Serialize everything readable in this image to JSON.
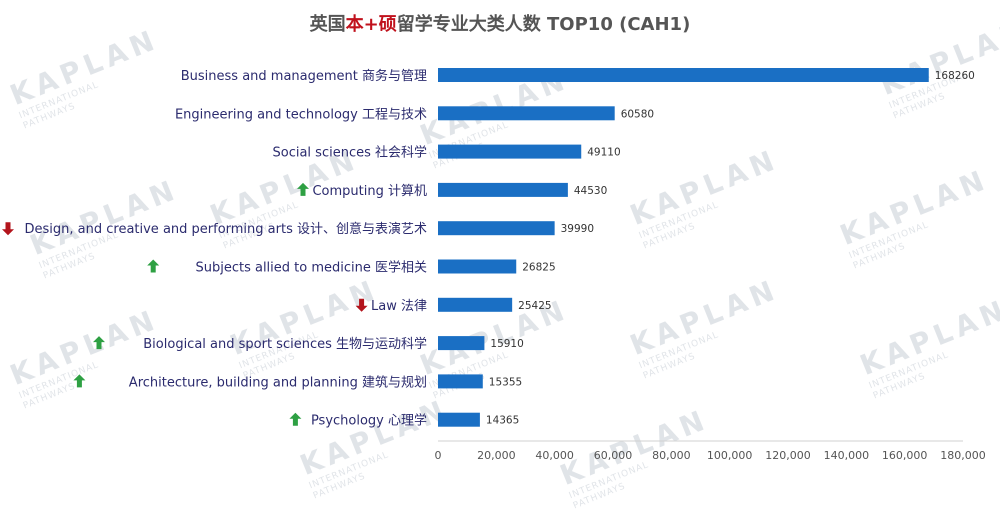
{
  "chart_data": {
    "type": "bar",
    "orientation": "horizontal",
    "title_parts": [
      "英国",
      "本+硕",
      "留学专业大类人数 TOP10 (CAH1)"
    ],
    "categories": [
      "Business and management 商务与管理",
      "Engineering and technology 工程与技术",
      "Social sciences 社会科学",
      "Computing 计算机",
      "Design, and creative and performing arts 设计、创意与表演艺术",
      "Subjects allied to medicine 医学相关",
      "Law 法律",
      "Biological and sport sciences 生物与运动科学",
      "Architecture, building and planning 建筑与规划",
      "Psychology 心理学"
    ],
    "trend": [
      "",
      "",
      "",
      "up",
      "down",
      "up",
      "down",
      "up",
      "up",
      "up"
    ],
    "values": [
      168260,
      60580,
      49110,
      44530,
      39990,
      26825,
      25425,
      15910,
      15355,
      14365
    ],
    "xlim": [
      0,
      180000
    ],
    "xticks": [
      "0",
      "20,000",
      "40,000",
      "60,000",
      "80,000",
      "100,000",
      "120,000",
      "140,000",
      "160,000",
      "180,000"
    ],
    "grid": false,
    "bar_color": "#1a6fc4",
    "trend_colors": {
      "up": "#2ea043",
      "down": "#b3141c"
    },
    "title_highlight_color": "#c0111c"
  },
  "watermark": {
    "brand": "KAPLAN",
    "line1": "INTERNATIONAL",
    "line2": "PATHWAYS"
  }
}
